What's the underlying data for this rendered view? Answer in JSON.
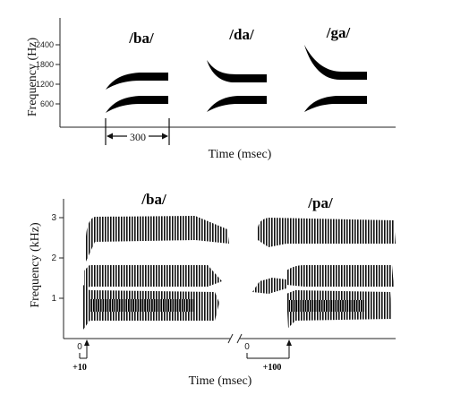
{
  "top_panel": {
    "ylabel": "Frequency (Hz)",
    "xlabel": "Time (msec)",
    "y_ticks": [
      "2400",
      "1800",
      "1200",
      "600"
    ],
    "syllables": [
      "/ba/",
      "/da/",
      "/ga/"
    ],
    "duration_label": "300"
  },
  "bottom_panel": {
    "ylabel": "Frequency (kHz)",
    "xlabel": "Time (msec)",
    "y_ticks": [
      "3",
      "2",
      "1"
    ],
    "syllables": [
      "/ba/",
      "/pa/"
    ],
    "x_zero_left": "0",
    "x_zero_right": "0",
    "vot_left": "+10",
    "vot_right": "+100"
  }
}
